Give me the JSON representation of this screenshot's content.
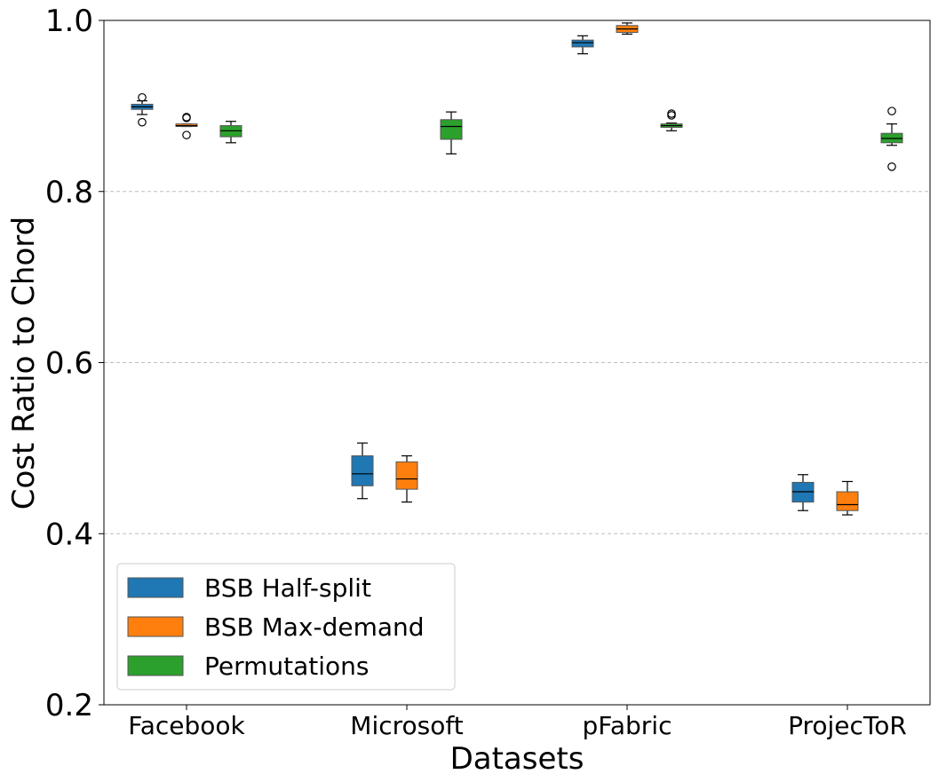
{
  "chart_data": {
    "type": "box",
    "xlabel": "Datasets",
    "ylabel": "Cost Ratio to Chord",
    "ylim": [
      0.2,
      1.0
    ],
    "yticks": [
      "0.2",
      "0.4",
      "0.6",
      "0.8",
      "1.0"
    ],
    "ytick_values": [
      0.2,
      0.4,
      0.6,
      0.8,
      1.0
    ],
    "grid": "horizontal dashed",
    "legend_position": "lower-left",
    "categories": [
      "Facebook",
      "Microsoft",
      "pFabric",
      "ProjecToR"
    ],
    "series": [
      {
        "name": "BSB Half-split",
        "color": "#1f77b4",
        "boxes": [
          {
            "category": "Facebook",
            "whisker_low": 0.89,
            "q1": 0.896,
            "median": 0.899,
            "q3": 0.902,
            "whisker_high": 0.906,
            "outliers": [
              0.91,
              0.881
            ]
          },
          {
            "category": "Microsoft",
            "whisker_low": 0.441,
            "q1": 0.456,
            "median": 0.47,
            "q3": 0.491,
            "whisker_high": 0.506,
            "outliers": []
          },
          {
            "category": "pFabric",
            "whisker_low": 0.961,
            "q1": 0.969,
            "median": 0.974,
            "q3": 0.977,
            "whisker_high": 0.982,
            "outliers": []
          },
          {
            "category": "ProjecToR",
            "whisker_low": 0.427,
            "q1": 0.437,
            "median": 0.449,
            "q3": 0.46,
            "whisker_high": 0.469,
            "outliers": []
          }
        ]
      },
      {
        "name": "BSB Max-demand",
        "color": "#ff7f0e",
        "boxes": [
          {
            "category": "Facebook",
            "whisker_low": 0.876,
            "q1": 0.876,
            "median": 0.877,
            "q3": 0.879,
            "whisker_high": 0.879,
            "outliers": [
              0.887,
              0.886,
              0.866
            ]
          },
          {
            "category": "Microsoft",
            "whisker_low": 0.437,
            "q1": 0.452,
            "median": 0.464,
            "q3": 0.484,
            "whisker_high": 0.491,
            "outliers": []
          },
          {
            "category": "pFabric",
            "whisker_low": 0.984,
            "q1": 0.986,
            "median": 0.99,
            "q3": 0.994,
            "whisker_high": 0.997,
            "outliers": []
          },
          {
            "category": "ProjecToR",
            "whisker_low": 0.422,
            "q1": 0.427,
            "median": 0.434,
            "q3": 0.449,
            "whisker_high": 0.461,
            "outliers": []
          }
        ]
      },
      {
        "name": "Permutations",
        "color": "#2ca02c",
        "boxes": [
          {
            "category": "Facebook",
            "whisker_low": 0.857,
            "q1": 0.864,
            "median": 0.871,
            "q3": 0.877,
            "whisker_high": 0.882,
            "outliers": []
          },
          {
            "category": "Microsoft",
            "whisker_low": 0.844,
            "q1": 0.861,
            "median": 0.876,
            "q3": 0.884,
            "whisker_high": 0.893,
            "outliers": []
          },
          {
            "category": "pFabric",
            "whisker_low": 0.871,
            "q1": 0.875,
            "median": 0.877,
            "q3": 0.879,
            "whisker_high": 0.88,
            "outliers": [
              0.891,
              0.889
            ]
          },
          {
            "category": "ProjecToR",
            "whisker_low": 0.854,
            "q1": 0.857,
            "median": 0.862,
            "q3": 0.868,
            "whisker_high": 0.879,
            "outliers": [
              0.894,
              0.829
            ]
          }
        ]
      }
    ]
  }
}
